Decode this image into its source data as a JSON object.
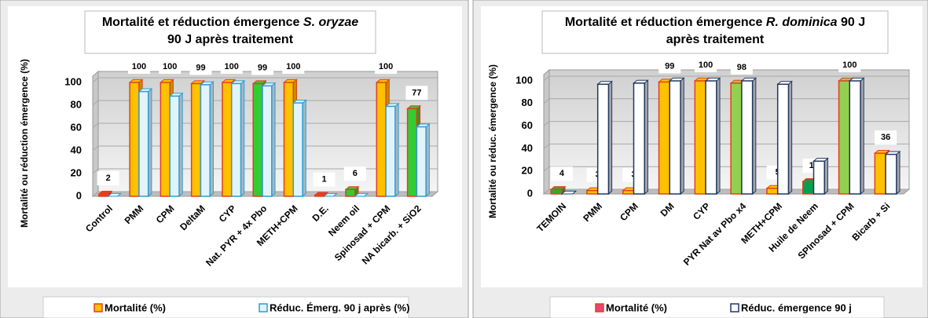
{
  "chart_data": [
    {
      "type": "bar3d",
      "title": [
        [
          {
            "text": "Mortalité et réduction émergence ",
            "italic": false
          },
          {
            "text": "S. oryzae",
            "italic": true
          }
        ],
        [
          {
            "text": "90 J après traitement",
            "italic": false
          }
        ]
      ],
      "ylabel": "Mortalité ou réduction émergence (%)",
      "categories": [
        "Control",
        "PMM",
        "CPM",
        "DeltaM",
        "CYP",
        "Nat. PYR + 4x Pbo",
        "METH+CPM",
        "D.E.",
        "Neem oil",
        "Spinosad + CPM",
        "NA bicarb. + SiO2"
      ],
      "series": [
        {
          "name": "Mortalité (%)",
          "color": "#ffc000",
          "edge": "#e2401b",
          "colors": [
            "#e2401b",
            "#ffc000",
            "#ffc000",
            "#ffc000",
            "#ffc000",
            "#33cc33",
            "#ffc000",
            "#e2401b",
            "#33cc33",
            "#ffc000",
            "#33cc33"
          ],
          "values": [
            2,
            100,
            100,
            99,
            100,
            99,
            100,
            1,
            6,
            100,
            77
          ]
        },
        {
          "name": "Réduc. Émerg. 90 j après (%)",
          "color": "#e1f4fb",
          "edge": "#2e9bd6",
          "values": [
            0,
            92,
            88,
            98,
            99,
            97,
            82,
            0,
            0,
            79,
            61
          ]
        }
      ],
      "ylim": [
        0,
        100
      ],
      "yticks": [
        0,
        20,
        40,
        60,
        80,
        100
      ],
      "grid": true
    },
    {
      "type": "bar3d",
      "title": [
        [
          {
            "text": "Mortalité et réduction émergence ",
            "italic": false
          },
          {
            "text": "R. dominica",
            "italic": true
          },
          {
            "text": " 90 J",
            "italic": false
          }
        ],
        [
          {
            "text": "après traitement",
            "italic": false
          }
        ]
      ],
      "ylabel": "Mortalité ou réduc. émergence (%)",
      "categories": [
        "TEMOIN",
        "PMM",
        "CPM",
        "DM",
        "CYP",
        "PYR Nat av Pbo x4",
        "METH+CPM",
        "Huile de Neem",
        "SPInosad +  CPM",
        "Bicarb + Si"
      ],
      "series": [
        {
          "name": "Mortalité (%)",
          "color": "#e8457a",
          "edge": "#e2401b",
          "colors": [
            "#33aa33",
            "#ffc000",
            "#ffc000",
            "#ffc000",
            "#ffc000",
            "#92d050",
            "#ffc000",
            "#00a050",
            "#92d050",
            "#ffc000"
          ],
          "values": [
            4,
            3,
            3,
            99,
            100,
            98,
            5,
            11,
            100,
            36
          ]
        },
        {
          "name": "Réduc. émergence 90 j",
          "color": "#ffffff",
          "edge": "#1f3864",
          "values": [
            0,
            97,
            98,
            100,
            100,
            100,
            97,
            29,
            100,
            35
          ]
        }
      ],
      "ylim": [
        0,
        100
      ],
      "yticks": [
        0,
        20,
        40,
        60,
        80,
        100
      ],
      "grid": true
    }
  ]
}
